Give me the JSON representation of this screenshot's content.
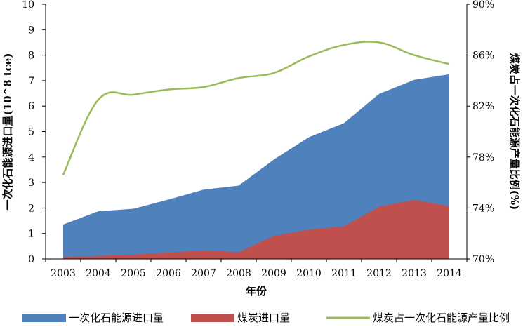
{
  "chart_data": {
    "type": "area",
    "title": "",
    "xlabel": "年份",
    "ylabel_left": "一次化石能源进口量(10^8 tce)",
    "ylabel_right": "煤炭占一次化石能源产量比例(%)",
    "categories": [
      "2003",
      "2004",
      "2005",
      "2006",
      "2007",
      "2008",
      "2009",
      "2010",
      "2011",
      "2012",
      "2013",
      "2014"
    ],
    "ylim_left": [
      0,
      10
    ],
    "yticks_left": [
      0,
      1,
      2,
      3,
      4,
      5,
      6,
      7,
      8,
      9,
      10
    ],
    "ylim_right": [
      70,
      90
    ],
    "yticks_right": [
      "70%",
      "74%",
      "78%",
      "82%",
      "86%",
      "90%"
    ],
    "yticks_right_values": [
      70,
      74,
      78,
      82,
      86,
      90
    ],
    "series": [
      {
        "name": "一次化石能源进口量",
        "type": "area",
        "axis": "left",
        "color": "#4f81bd",
        "values": [
          1.35,
          1.87,
          1.97,
          2.33,
          2.72,
          2.88,
          3.9,
          4.78,
          5.33,
          6.48,
          7.03,
          7.25
        ]
      },
      {
        "name": "煤炭进口量",
        "type": "area",
        "axis": "left",
        "color": "#c0504d",
        "values": [
          0.07,
          0.12,
          0.17,
          0.25,
          0.34,
          0.27,
          0.9,
          1.15,
          1.28,
          2.05,
          2.32,
          2.07
        ]
      },
      {
        "name": "煤炭占一次化石能源产量比例",
        "type": "line",
        "axis": "right",
        "color": "#9bbb59",
        "values": [
          76.6,
          82.5,
          82.9,
          83.3,
          83.5,
          84.2,
          84.6,
          85.9,
          86.8,
          87.0,
          86.0,
          85.3
        ]
      }
    ],
    "grid": false,
    "legend_position": "bottom"
  }
}
